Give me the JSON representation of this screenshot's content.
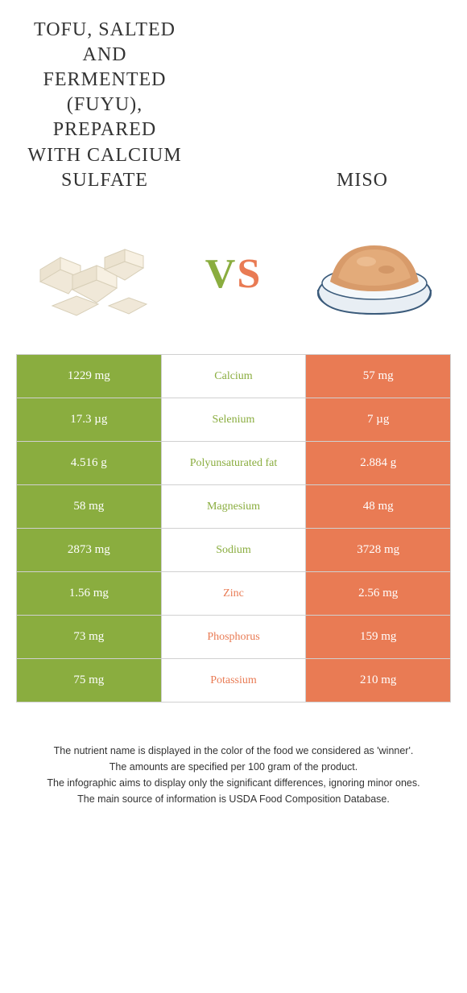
{
  "left_food": {
    "title": "Tofu, salted and fermented (fuyu), prepared with calcium sulfate"
  },
  "right_food": {
    "title": "Miso"
  },
  "vs": {
    "v": "V",
    "s": "S"
  },
  "colors": {
    "left": "#8aad3f",
    "right": "#e97b54",
    "border": "#d0d0d0"
  },
  "rows": [
    {
      "left": "1229 mg",
      "label": "Calcium",
      "right": "57 mg",
      "winner": "left"
    },
    {
      "left": "17.3 µg",
      "label": "Selenium",
      "right": "7 µg",
      "winner": "left"
    },
    {
      "left": "4.516 g",
      "label": "Polyunsaturated fat",
      "right": "2.884 g",
      "winner": "left"
    },
    {
      "left": "58 mg",
      "label": "Magnesium",
      "right": "48 mg",
      "winner": "left"
    },
    {
      "left": "2873 mg",
      "label": "Sodium",
      "right": "3728 mg",
      "winner": "left"
    },
    {
      "left": "1.56 mg",
      "label": "Zinc",
      "right": "2.56 mg",
      "winner": "right"
    },
    {
      "left": "73 mg",
      "label": "Phosphorus",
      "right": "159 mg",
      "winner": "right"
    },
    {
      "left": "75 mg",
      "label": "Potassium",
      "right": "210 mg",
      "winner": "right"
    }
  ],
  "footer": {
    "l1": "The nutrient name is displayed in the color of the food we considered as 'winner'.",
    "l2": "The amounts are specified per 100 gram of the product.",
    "l3": "The infographic aims to display only the significant differences, ignoring minor ones.",
    "l4": "The main source of information is USDA Food Composition Database."
  }
}
